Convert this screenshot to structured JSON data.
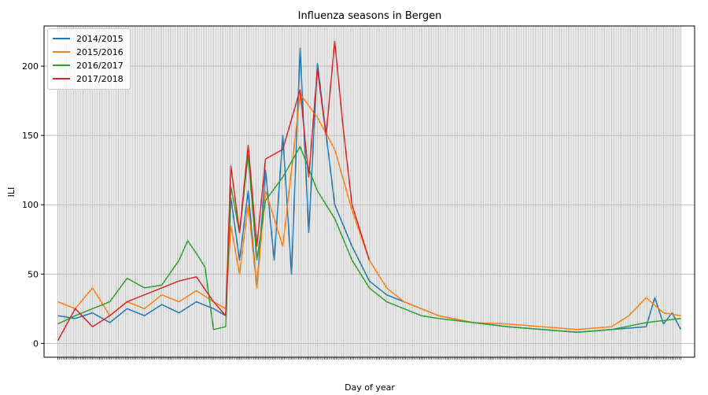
{
  "chart_data": {
    "type": "line",
    "title": "Influenza seasons in Bergen",
    "xlabel": "Day of year",
    "ylabel": "ILI",
    "ylim": [
      -10,
      229
    ],
    "y_ticks": [
      0,
      50,
      100,
      150,
      200
    ],
    "grid": true,
    "legend_position": "top-left",
    "series": [
      {
        "name": "2014/2015",
        "color": "#1f77b4",
        "x": [
          0,
          10,
          20,
          30,
          40,
          50,
          60,
          70,
          80,
          90,
          97,
          100,
          105,
          110,
          115,
          120,
          125,
          130,
          135,
          140,
          145,
          150,
          160,
          170,
          180,
          190,
          200,
          210,
          220,
          240,
          260,
          280,
          300,
          320,
          340,
          345,
          350,
          355,
          360
        ],
        "y": [
          20,
          18,
          22,
          15,
          25,
          20,
          28,
          22,
          30,
          25,
          20,
          105,
          60,
          110,
          40,
          125,
          60,
          150,
          50,
          213,
          80,
          202,
          100,
          70,
          45,
          35,
          30,
          25,
          20,
          15,
          12,
          10,
          8,
          10,
          12,
          33,
          14,
          22,
          10
        ]
      },
      {
        "name": "2015/2016",
        "color": "#ff7f0e",
        "x": [
          0,
          10,
          20,
          30,
          40,
          50,
          60,
          70,
          80,
          90,
          97,
          100,
          105,
          110,
          115,
          120,
          130,
          140,
          150,
          160,
          170,
          180,
          190,
          200,
          210,
          220,
          240,
          260,
          280,
          300,
          320,
          330,
          340,
          350,
          360
        ],
        "y": [
          30,
          25,
          40,
          20,
          30,
          25,
          35,
          30,
          38,
          30,
          25,
          85,
          50,
          100,
          40,
          110,
          70,
          180,
          163,
          140,
          96,
          60,
          40,
          30,
          25,
          20,
          15,
          14,
          12,
          10,
          12,
          20,
          33,
          22,
          20
        ]
      },
      {
        "name": "2016/2017",
        "color": "#2ca02c",
        "x": [
          0,
          10,
          20,
          30,
          40,
          50,
          60,
          70,
          75,
          80,
          85,
          90,
          97,
          100,
          105,
          110,
          115,
          120,
          130,
          140,
          150,
          160,
          170,
          180,
          190,
          200,
          210,
          220,
          240,
          260,
          280,
          300,
          320,
          340,
          360
        ],
        "y": [
          14,
          20,
          25,
          30,
          47,
          40,
          42,
          60,
          74,
          65,
          55,
          10,
          12,
          113,
          80,
          136,
          60,
          103,
          120,
          142,
          110,
          90,
          60,
          40,
          30,
          25,
          20,
          18,
          15,
          12,
          10,
          8,
          10,
          15,
          18
        ]
      },
      {
        "name": "2017/2018",
        "color": "#d62728",
        "x": [
          0,
          10,
          20,
          30,
          40,
          50,
          60,
          70,
          80,
          90,
          97,
          100,
          105,
          110,
          115,
          120,
          130,
          140,
          145,
          150,
          155,
          160,
          165,
          170,
          180
        ],
        "y": [
          2,
          25,
          12,
          20,
          30,
          35,
          40,
          45,
          48,
          30,
          20,
          128,
          80,
          143,
          70,
          133,
          140,
          183,
          120,
          198,
          150,
          218,
          154,
          100,
          60
        ]
      }
    ]
  }
}
